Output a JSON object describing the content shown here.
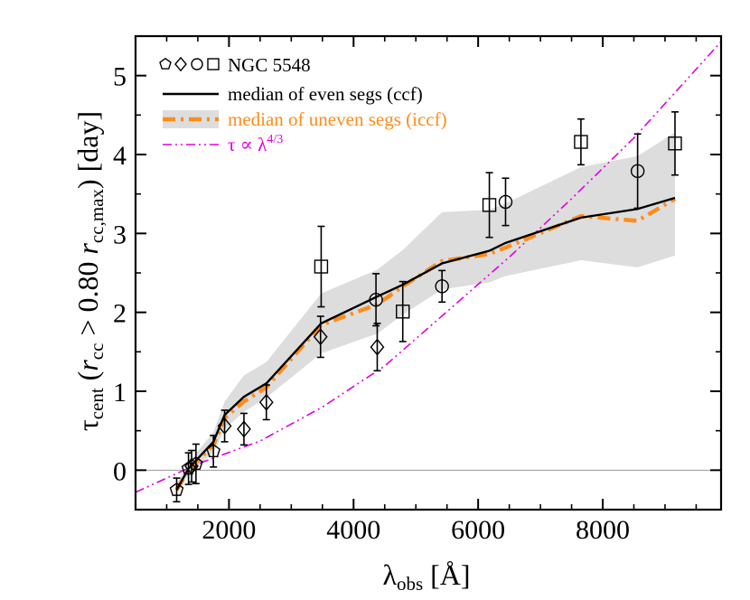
{
  "chart_data": {
    "type": "scatter",
    "xlabel": "λobs [Å]",
    "ylabel": "τcent (rcc > 0.80 rcc,max) [day]",
    "xlim": [
      500,
      9900
    ],
    "ylim": [
      -0.5,
      5.5
    ],
    "x_ticks": [
      "2000",
      "4000",
      "6000",
      "8000"
    ],
    "y_ticks": [
      "0",
      "1",
      "2",
      "3",
      "4",
      "5"
    ],
    "zero_line": true,
    "grid": false,
    "legend_position": "top-left",
    "legend": [
      {
        "label": "NGC 5548",
        "symbols": "pentagon, diamond, circle, square",
        "color": "#000000"
      },
      {
        "label": "median of even segs (ccf)",
        "style": "solid",
        "color": "#000000"
      },
      {
        "label": "median of uneven segs (iccf)",
        "style": "dash-dot with grey band",
        "color": "#ff8c1a"
      },
      {
        "label": "τ ∝ λ4/3",
        "style": "dash-dot-dot",
        "color": "#e000e0"
      }
    ],
    "series": [
      {
        "name": "NGC 5548",
        "marker": "pentagon",
        "points": [
          {
            "x": 1160,
            "y": -0.25,
            "err": 0.15
          },
          {
            "x": 1350,
            "y": 0.02,
            "err": 0.2
          },
          {
            "x": 1470,
            "y": 0.08,
            "err": 0.25
          },
          {
            "x": 1750,
            "y": 0.24,
            "err": 0.2
          }
        ]
      },
      {
        "name": "NGC 5548",
        "marker": "diamond",
        "points": [
          {
            "x": 1400,
            "y": 0.05,
            "err": 0.2
          },
          {
            "x": 1930,
            "y": 0.56,
            "err": 0.2
          },
          {
            "x": 2240,
            "y": 0.52,
            "err": 0.2
          },
          {
            "x": 2600,
            "y": 0.86,
            "err": 0.22
          },
          {
            "x": 3470,
            "y": 1.69,
            "err": 0.26
          },
          {
            "x": 4380,
            "y": 1.56,
            "err": 0.3
          }
        ]
      },
      {
        "name": "NGC 5548",
        "marker": "circle",
        "points": [
          {
            "x": 4360,
            "y": 2.16,
            "err": 0.33
          },
          {
            "x": 5420,
            "y": 2.33,
            "err": 0.2
          },
          {
            "x": 6440,
            "y": 3.4,
            "err": 0.3
          },
          {
            "x": 8560,
            "y": 3.79,
            "err": 0.47
          }
        ]
      },
      {
        "name": "NGC 5548",
        "marker": "square",
        "points": [
          {
            "x": 3480,
            "y": 2.58,
            "err": 0.51
          },
          {
            "x": 4790,
            "y": 2.01,
            "err": 0.38
          },
          {
            "x": 6180,
            "y": 3.36,
            "err": 0.41
          },
          {
            "x": 7650,
            "y": 4.16,
            "err": 0.29
          },
          {
            "x": 9160,
            "y": 4.14,
            "err": 0.4
          }
        ]
      },
      {
        "name": "median of even segs (ccf)",
        "style": "line",
        "x": [
          1160,
          1350,
          1750,
          1930,
          2240,
          2600,
          3480,
          4380,
          4790,
          5420,
          6180,
          6440,
          7650,
          8560,
          9160
        ],
        "y": [
          -0.25,
          0.02,
          0.36,
          0.7,
          0.93,
          1.1,
          1.86,
          2.2,
          2.35,
          2.62,
          2.78,
          2.88,
          3.2,
          3.31,
          3.45
        ]
      },
      {
        "name": "median of uneven segs (iccf)",
        "style": "dashdot",
        "x": [
          1160,
          1350,
          1750,
          1930,
          2240,
          2600,
          3480,
          4380,
          4790,
          5420,
          6180,
          6440,
          7650,
          8560,
          9160
        ],
        "y": [
          -0.25,
          0.0,
          0.32,
          0.66,
          0.87,
          1.05,
          1.84,
          2.1,
          2.33,
          2.65,
          2.74,
          2.82,
          3.22,
          3.16,
          3.44
        ],
        "band_lower": [
          -0.28,
          -0.06,
          0.22,
          0.52,
          0.74,
          0.92,
          1.48,
          1.73,
          1.97,
          2.29,
          2.38,
          2.46,
          2.66,
          2.57,
          2.72
        ],
        "band_upper": [
          -0.18,
          0.1,
          0.48,
          0.87,
          1.2,
          1.37,
          2.24,
          2.54,
          2.79,
          3.27,
          3.3,
          3.38,
          3.84,
          3.98,
          4.28
        ]
      },
      {
        "name": "τ ∝ λ4/3",
        "style": "dashdotdot",
        "x": [
          500,
          1500,
          2500,
          3500,
          4500,
          5500,
          6500,
          7500,
          8500,
          9900
        ],
        "y": [
          -0.28,
          0.08,
          0.37,
          0.8,
          1.32,
          2.01,
          2.7,
          3.44,
          4.21,
          5.43
        ]
      }
    ]
  }
}
